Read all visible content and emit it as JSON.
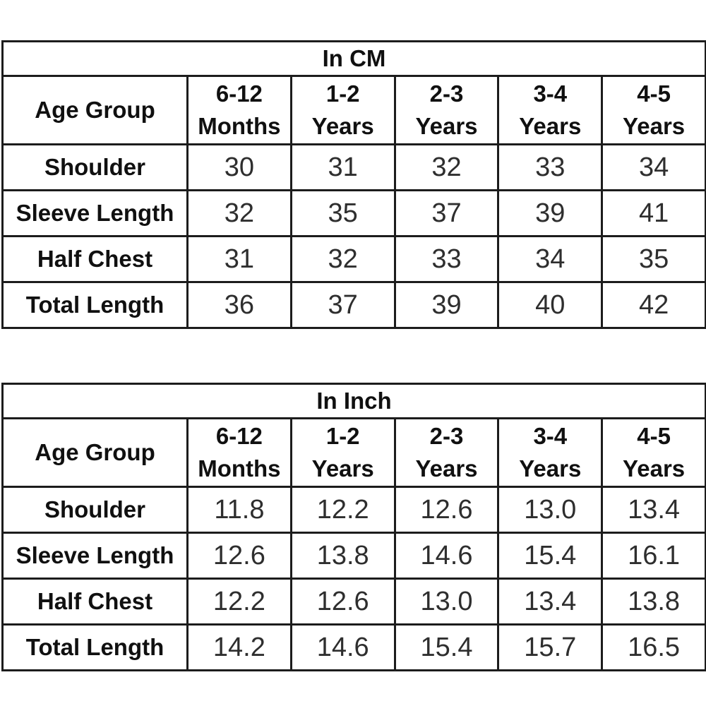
{
  "page": {
    "background_color": "#ffffff",
    "border_color": "#1c1c1c",
    "text_color": "#101010"
  },
  "tables": [
    {
      "title": "In CM",
      "corner_label": "Age Group",
      "columns": [
        {
          "l1": "6-12",
          "l2": "Months"
        },
        {
          "l1": "1-2",
          "l2": "Years"
        },
        {
          "l1": "2-3",
          "l2": "Years"
        },
        {
          "l1": "3-4",
          "l2": "Years"
        },
        {
          "l1": "4-5",
          "l2": "Years"
        }
      ],
      "rows": [
        {
          "label": "Shoulder",
          "values": [
            "30",
            "31",
            "32",
            "33",
            "34"
          ]
        },
        {
          "label": "Sleeve Length",
          "values": [
            "32",
            "35",
            "37",
            "39",
            "41"
          ]
        },
        {
          "label": "Half Chest",
          "values": [
            "31",
            "32",
            "33",
            "34",
            "35"
          ]
        },
        {
          "label": "Total Length",
          "values": [
            "36",
            "37",
            "39",
            "40",
            "42"
          ]
        }
      ]
    },
    {
      "title": "In Inch",
      "corner_label": "Age Group",
      "columns": [
        {
          "l1": "6-12",
          "l2": "Months"
        },
        {
          "l1": "1-2",
          "l2": "Years"
        },
        {
          "l1": "2-3",
          "l2": "Years"
        },
        {
          "l1": "3-4",
          "l2": "Years"
        },
        {
          "l1": "4-5",
          "l2": "Years"
        }
      ],
      "rows": [
        {
          "label": "Shoulder",
          "values": [
            "11.8",
            "12.2",
            "12.6",
            "13.0",
            "13.4"
          ]
        },
        {
          "label": "Sleeve Length",
          "values": [
            "12.6",
            "13.8",
            "14.6",
            "15.4",
            "16.1"
          ]
        },
        {
          "label": "Half Chest",
          "values": [
            "12.2",
            "12.6",
            "13.0",
            "13.4",
            "13.8"
          ]
        },
        {
          "label": "Total Length",
          "values": [
            "14.2",
            "14.6",
            "15.4",
            "15.7",
            "16.5"
          ]
        }
      ]
    }
  ],
  "chart_data": [
    {
      "type": "table",
      "title": "In CM",
      "columns": [
        "Age Group",
        "6-12 Months",
        "1-2 Years",
        "2-3 Years",
        "3-4 Years",
        "4-5 Years"
      ],
      "rows": [
        [
          "Shoulder",
          30,
          31,
          32,
          33,
          34
        ],
        [
          "Sleeve Length",
          32,
          35,
          37,
          39,
          41
        ],
        [
          "Half Chest",
          31,
          32,
          33,
          34,
          35
        ],
        [
          "Total Length",
          36,
          37,
          39,
          40,
          42
        ]
      ]
    },
    {
      "type": "table",
      "title": "In Inch",
      "columns": [
        "Age Group",
        "6-12 Months",
        "1-2 Years",
        "2-3 Years",
        "3-4 Years",
        "4-5 Years"
      ],
      "rows": [
        [
          "Shoulder",
          11.8,
          12.2,
          12.6,
          13.0,
          13.4
        ],
        [
          "Sleeve Length",
          12.6,
          13.8,
          14.6,
          15.4,
          16.1
        ],
        [
          "Half Chest",
          12.2,
          12.6,
          13.0,
          13.4,
          13.8
        ],
        [
          "Total Length",
          14.2,
          14.6,
          15.4,
          15.7,
          16.5
        ]
      ]
    }
  ]
}
